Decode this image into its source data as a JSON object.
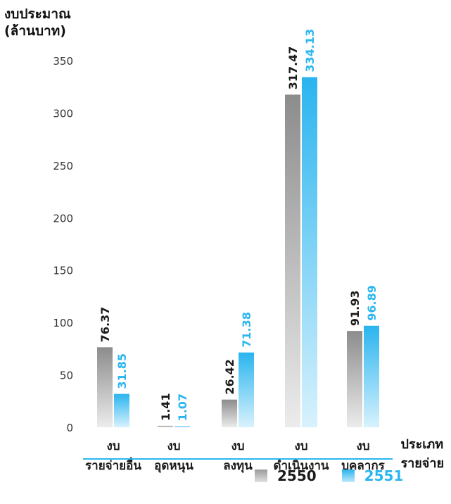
{
  "chart_data": {
    "type": "bar",
    "ylabel_line1": "งบประมาณ",
    "ylabel_line2": "(ล้านบาท)",
    "xlabel_line1": "ประเภท",
    "xlabel_line2": "รายจ่าย",
    "ylim": [
      0,
      350
    ],
    "yticks": [
      0,
      50,
      100,
      150,
      200,
      250,
      300,
      350
    ],
    "categories": [
      {
        "line1": "งบ",
        "line2": "รายจ่ายอื่น"
      },
      {
        "line1": "งบ",
        "line2": "อุดหนุน"
      },
      {
        "line1": "งบ",
        "line2": "ลงทุน"
      },
      {
        "line1": "งบ",
        "line2": "ดำเนินงาน"
      },
      {
        "line1": "งบ",
        "line2": "บุคลากร"
      }
    ],
    "series": [
      {
        "name": "2550",
        "values": [
          76.37,
          1.41,
          26.42,
          317.47,
          91.93
        ],
        "labels": [
          "76.37",
          "1.41",
          "26.42",
          "317.47",
          "91.93"
        ],
        "color": "#8a8a8a",
        "label_color": "#1a1a1a"
      },
      {
        "name": "2551",
        "values": [
          31.85,
          1.07,
          71.38,
          334.13,
          96.89
        ],
        "labels": [
          "31.85",
          "1.07",
          "71.38",
          "334.13",
          "96.89"
        ],
        "color": "#29b6f0",
        "label_color": "#29b6f0"
      }
    ],
    "legend_position": "bottom-right",
    "grid": false
  }
}
